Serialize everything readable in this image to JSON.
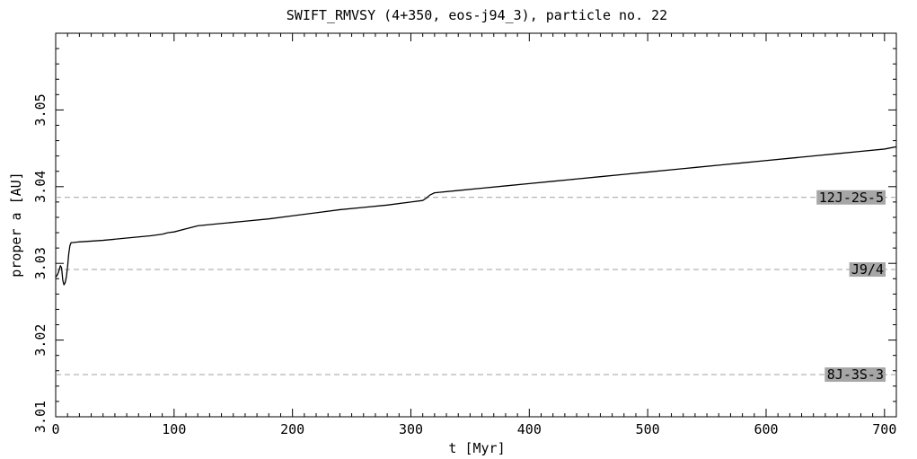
{
  "chart_data": {
    "type": "line",
    "title": "SWIFT_RMVSY (4+350, eos-j94_3), particle no. 22",
    "xlabel": "t [Myr]",
    "ylabel": "proper a [AU]",
    "xlim": [
      0,
      710
    ],
    "ylim": [
      3.01,
      3.06
    ],
    "x_ticks": [
      0,
      100,
      200,
      300,
      400,
      500,
      600,
      700
    ],
    "x_tick_labels": [
      "0",
      "100",
      "200",
      "300",
      "400",
      "500",
      "600",
      "700"
    ],
    "y_ticks": [
      3.01,
      3.02,
      3.03,
      3.04,
      3.05
    ],
    "y_tick_labels": [
      "3.01",
      "3.02",
      "3.03",
      "3.04",
      "3.05"
    ],
    "grid": false,
    "series": [
      {
        "x": [
          0,
          1,
          2,
          3,
          4,
          5,
          6,
          7,
          8,
          9,
          10,
          11,
          12,
          13,
          14,
          20,
          40,
          60,
          80,
          90,
          95,
          100,
          110,
          120,
          140,
          160,
          180,
          200,
          220,
          240,
          260,
          280,
          300,
          310,
          313,
          316,
          320,
          340,
          360,
          380,
          400,
          420,
          440,
          460,
          480,
          500,
          520,
          540,
          560,
          580,
          600,
          620,
          640,
          660,
          680,
          700,
          710
        ],
        "y": [
          3.0282,
          3.0284,
          3.0287,
          3.0292,
          3.0297,
          3.0294,
          3.0278,
          3.0272,
          3.0275,
          3.0282,
          3.0295,
          3.0312,
          3.0323,
          3.0327,
          3.0327,
          3.0328,
          3.033,
          3.0333,
          3.0336,
          3.0338,
          3.034,
          3.0341,
          3.0345,
          3.0349,
          3.0352,
          3.0355,
          3.0358,
          3.0362,
          3.0366,
          3.037,
          3.0373,
          3.0376,
          3.038,
          3.0382,
          3.0385,
          3.0389,
          3.0392,
          3.0395,
          3.0398,
          3.0401,
          3.0404,
          3.0407,
          3.041,
          3.0413,
          3.0416,
          3.0419,
          3.0422,
          3.0425,
          3.0428,
          3.0431,
          3.0434,
          3.0437,
          3.044,
          3.0443,
          3.0446,
          3.0449,
          3.0452
        ]
      }
    ],
    "reference_lines": [
      {
        "label": "12J-2S-5",
        "y": 3.0386
      },
      {
        "label": "J9/4",
        "y": 3.0292
      },
      {
        "label": "8J-3S-3",
        "y": 3.0155
      }
    ],
    "colors": {
      "line": "#000000",
      "reference_line": "#a0a0a0",
      "label_box": "#a6a6a6"
    }
  }
}
